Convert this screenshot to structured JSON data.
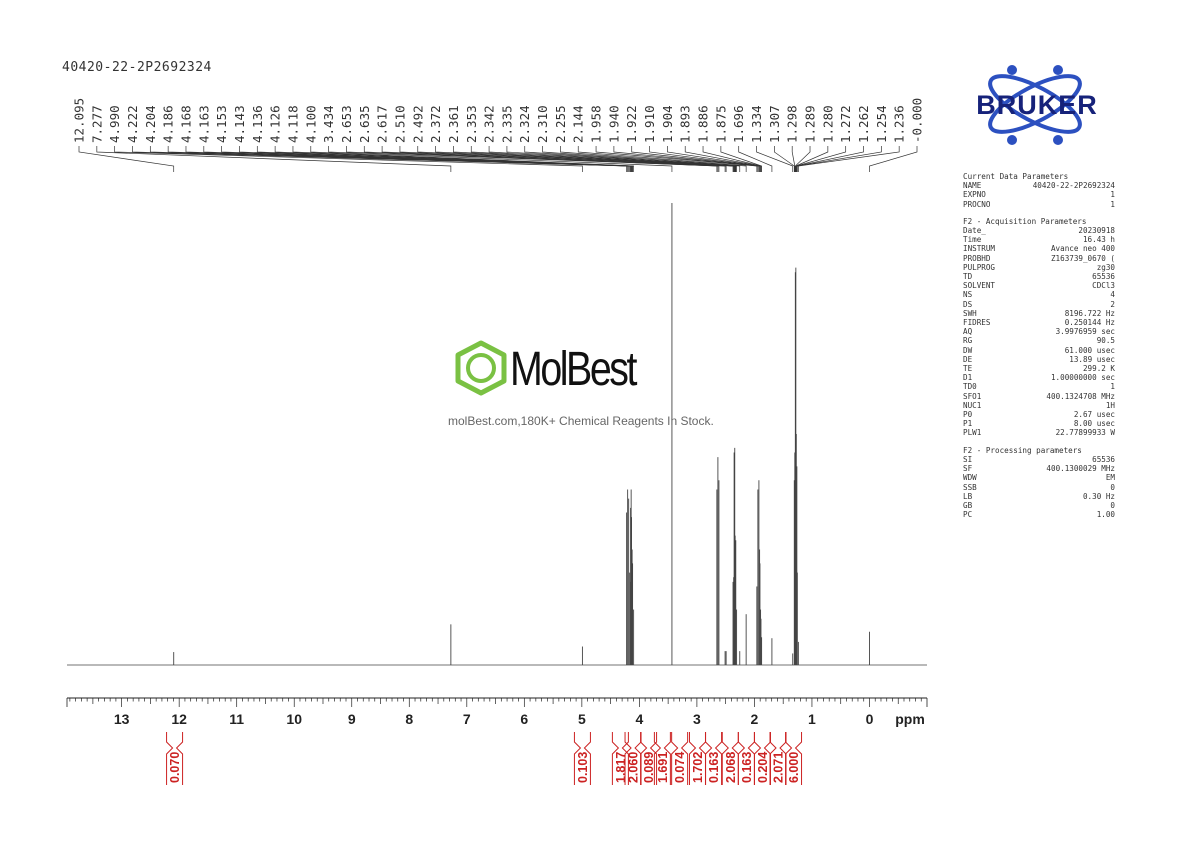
{
  "sample_name": "40420-22-2P2692324",
  "watermark": {
    "brand": "MolBest",
    "tagline": "molBest.com,180K+ Chemical Reagents In Stock."
  },
  "logo": {
    "text": "BRUKER",
    "color": "#16227a",
    "accent": "#2c50c0"
  },
  "colors": {
    "spectrum": "#444444",
    "integral": "#cc2222",
    "axis": "#222222"
  },
  "params": {
    "current": {
      "title": "Current Data Parameters",
      "rows": [
        {
          "k": "NAME",
          "v": "40420-22-2P2692324"
        },
        {
          "k": "EXPNO",
          "v": "1"
        },
        {
          "k": "PROCNO",
          "v": "1"
        }
      ]
    },
    "acquisition": {
      "title": "F2 - Acquisition Parameters",
      "rows": [
        {
          "k": "Date_",
          "v": "20230918"
        },
        {
          "k": "Time",
          "v": "16.43 h"
        },
        {
          "k": "INSTRUM",
          "v": "Avance neo 400"
        },
        {
          "k": "PROBHD",
          "v": "Z163739_0670 ("
        },
        {
          "k": "PULPROG",
          "v": "zg30"
        },
        {
          "k": "TD",
          "v": "65536"
        },
        {
          "k": "SOLVENT",
          "v": "CDCl3"
        },
        {
          "k": "NS",
          "v": "4"
        },
        {
          "k": "DS",
          "v": "2"
        },
        {
          "k": "SWH",
          "v": "8196.722 Hz"
        },
        {
          "k": "FIDRES",
          "v": "0.250144 Hz"
        },
        {
          "k": "AQ",
          "v": "3.9976959 sec"
        },
        {
          "k": "RG",
          "v": "90.5"
        },
        {
          "k": "DW",
          "v": "61.000 usec"
        },
        {
          "k": "DE",
          "v": "13.89 usec"
        },
        {
          "k": "TE",
          "v": "299.2 K"
        },
        {
          "k": "D1",
          "v": "1.00000000 sec"
        },
        {
          "k": "TD0",
          "v": "1"
        },
        {
          "k": "SFO1",
          "v": "400.1324708 MHz"
        },
        {
          "k": "NUC1",
          "v": "1H"
        },
        {
          "k": "P0",
          "v": "2.67 usec"
        },
        {
          "k": "P1",
          "v": "8.00 usec"
        },
        {
          "k": "PLW1",
          "v": "22.77899933 W"
        }
      ]
    },
    "processing": {
      "title": "F2 - Processing parameters",
      "rows": [
        {
          "k": "SI",
          "v": "65536"
        },
        {
          "k": "SF",
          "v": "400.1300029 MHz"
        },
        {
          "k": "WDW",
          "v": "EM"
        },
        {
          "k": "SSB",
          "v": "0"
        },
        {
          "k": "LB",
          "v": "0.30 Hz"
        },
        {
          "k": "GB",
          "v": "0"
        },
        {
          "k": "PC",
          "v": "1.00"
        }
      ]
    }
  },
  "chart_data": {
    "type": "line",
    "xlabel": "ppm",
    "xlim": [
      13.95,
      -1.0
    ],
    "x_reversed": true,
    "x_ticks": [
      13,
      12,
      11,
      10,
      9,
      8,
      7,
      6,
      5,
      4,
      3,
      2,
      1,
      0
    ],
    "peak_labels": [
      "12.095",
      "7.277",
      "4.990",
      "4.222",
      "4.204",
      "4.186",
      "4.168",
      "4.163",
      "4.153",
      "4.143",
      "4.136",
      "4.126",
      "4.118",
      "4.100",
      "3.434",
      "2.653",
      "2.635",
      "2.617",
      "2.510",
      "2.492",
      "2.372",
      "2.361",
      "2.353",
      "2.342",
      "2.335",
      "2.324",
      "2.310",
      "2.255",
      "2.144",
      "1.958",
      "1.940",
      "1.922",
      "1.910",
      "1.904",
      "1.893",
      "1.886",
      "1.875",
      "1.696",
      "1.334",
      "1.307",
      "1.298",
      "1.289",
      "1.280",
      "1.272",
      "1.262",
      "1.254",
      "1.236",
      "-0.000"
    ],
    "peaks": [
      {
        "x": 12.095,
        "h": 0.028
      },
      {
        "x": 7.277,
        "h": 0.088
      },
      {
        "x": 4.99,
        "h": 0.04
      },
      {
        "x": 4.222,
        "h": 0.33
      },
      {
        "x": 4.204,
        "h": 0.38
      },
      {
        "x": 4.186,
        "h": 0.36
      },
      {
        "x": 4.168,
        "h": 0.2
      },
      {
        "x": 4.163,
        "h": 0.18
      },
      {
        "x": 4.153,
        "h": 0.34
      },
      {
        "x": 4.143,
        "h": 0.38
      },
      {
        "x": 4.136,
        "h": 0.32
      },
      {
        "x": 4.126,
        "h": 0.25
      },
      {
        "x": 4.118,
        "h": 0.22
      },
      {
        "x": 4.1,
        "h": 0.12
      },
      {
        "x": 3.434,
        "h": 1.0
      },
      {
        "x": 2.653,
        "h": 0.38
      },
      {
        "x": 2.635,
        "h": 0.45
      },
      {
        "x": 2.617,
        "h": 0.4
      },
      {
        "x": 2.51,
        "h": 0.03
      },
      {
        "x": 2.492,
        "h": 0.03
      },
      {
        "x": 2.372,
        "h": 0.18
      },
      {
        "x": 2.361,
        "h": 0.19
      },
      {
        "x": 2.353,
        "h": 0.46
      },
      {
        "x": 2.342,
        "h": 0.47
      },
      {
        "x": 2.335,
        "h": 0.28
      },
      {
        "x": 2.324,
        "h": 0.27
      },
      {
        "x": 2.31,
        "h": 0.12
      },
      {
        "x": 2.255,
        "h": 0.03
      },
      {
        "x": 2.144,
        "h": 0.11
      },
      {
        "x": 1.958,
        "h": 0.17
      },
      {
        "x": 1.94,
        "h": 0.38
      },
      {
        "x": 1.922,
        "h": 0.4
      },
      {
        "x": 1.91,
        "h": 0.25
      },
      {
        "x": 1.904,
        "h": 0.22
      },
      {
        "x": 1.893,
        "h": 0.12
      },
      {
        "x": 1.886,
        "h": 0.1
      },
      {
        "x": 1.875,
        "h": 0.06
      },
      {
        "x": 1.696,
        "h": 0.058
      },
      {
        "x": 1.334,
        "h": 0.025
      },
      {
        "x": 1.307,
        "h": 0.4
      },
      {
        "x": 1.298,
        "h": 0.46
      },
      {
        "x": 1.289,
        "h": 0.85
      },
      {
        "x": 1.28,
        "h": 0.86
      },
      {
        "x": 1.272,
        "h": 0.5
      },
      {
        "x": 1.262,
        "h": 0.43
      },
      {
        "x": 1.254,
        "h": 0.2
      },
      {
        "x": 1.236,
        "h": 0.05
      },
      {
        "x": 0.0,
        "h": 0.072
      }
    ],
    "integrals": [
      {
        "x": 12.08,
        "label": "0.070"
      },
      {
        "x": 4.99,
        "label": "0.103"
      },
      {
        "x": 4.33,
        "label": "1.817"
      },
      {
        "x": 4.11,
        "label": "2.060"
      },
      {
        "x": 3.84,
        "label": "0.089"
      },
      {
        "x": 3.6,
        "label": "1.691"
      },
      {
        "x": 3.3,
        "label": "0.074"
      },
      {
        "x": 2.99,
        "label": "1.702"
      },
      {
        "x": 2.71,
        "label": "0.163"
      },
      {
        "x": 2.42,
        "label": "2.068"
      },
      {
        "x": 2.14,
        "label": "0.163"
      },
      {
        "x": 1.86,
        "label": "0.204"
      },
      {
        "x": 1.59,
        "label": "2.071"
      },
      {
        "x": 1.32,
        "label": "6.000"
      }
    ]
  }
}
